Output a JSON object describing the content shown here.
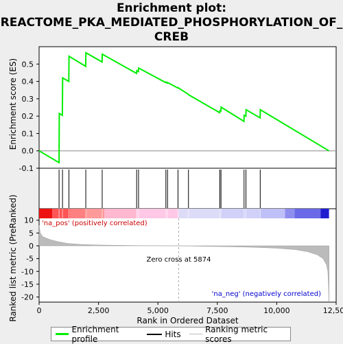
{
  "title_line1": "Enrichment plot:",
  "title_line2": "REACTOME_PKA_MEDIATED_PHOSPHORYLATION_OF_",
  "title_line3": "CREB",
  "colors": {
    "profile": "#00ee00",
    "hits": "#000000",
    "ranking_fill": "#bbbbbb",
    "zero_line": "#aaaaaa",
    "pos_label": "#cc0000",
    "neg_label": "#0000cc"
  },
  "legend": {
    "profile": "Enrichment profile",
    "hits": "Hits",
    "ranking": "Ranking metric scores"
  },
  "chart_data": [
    {
      "type": "line",
      "ylabel": "Enrichment score (ES)",
      "xlim": [
        0,
        12500
      ],
      "ylim": [
        -0.1,
        0.6
      ],
      "yticks": [
        -0.1,
        0.0,
        0.1,
        0.2,
        0.3,
        0.4,
        0.5
      ],
      "ytick_labels": [
        "-0.1",
        "0.0",
        "0.1",
        "0.2",
        "0.3",
        "0.4",
        "0.5"
      ],
      "series": [
        {
          "name": "Enrichment profile",
          "x": [
            0,
            840,
            850,
            980,
            990,
            1250,
            1260,
            1960,
            1970,
            2650,
            2660,
            4100,
            4110,
            4180,
            4190,
            5330,
            5340,
            5400,
            5410,
            5840,
            5850,
            6280,
            6290,
            7600,
            7610,
            7650,
            7660,
            8620,
            8630,
            8700,
            8710,
            9300,
            9310,
            12200
          ],
          "y": [
            0.0,
            -0.068,
            0.215,
            0.205,
            0.42,
            0.4,
            0.545,
            0.487,
            0.565,
            0.512,
            0.557,
            0.446,
            0.462,
            0.457,
            0.477,
            0.393,
            0.396,
            0.39,
            0.393,
            0.362,
            0.364,
            0.326,
            0.323,
            0.22,
            0.231,
            0.23,
            0.252,
            0.17,
            0.205,
            0.2,
            0.237,
            0.19,
            0.237,
            0.0
          ]
        }
      ]
    },
    {
      "type": "hits",
      "xlim": [
        0,
        12500
      ],
      "hit_positions": [
        840,
        985,
        1255,
        1965,
        2655,
        4105,
        4185,
        5335,
        5405,
        5845,
        6285,
        7605,
        7655,
        8625,
        8705,
        9305
      ]
    },
    {
      "type": "area",
      "xlabel": "Rank in Ordered Dataset",
      "ylabel": "Ranked list metric (PreRanked)",
      "xlim": [
        0,
        12500
      ],
      "ylim": [
        -22,
        11
      ],
      "xticks": [
        0,
        2500,
        5000,
        7500,
        10000,
        12500
      ],
      "xtick_labels": [
        "0",
        "2,500",
        "5,000",
        "7,500",
        "10,000",
        "12,500"
      ],
      "yticks": [
        10,
        5,
        0,
        -5,
        -10,
        -15,
        -20
      ],
      "ytick_labels": [
        "10",
        "5",
        "0",
        "-5",
        "-10",
        "-15",
        "-20"
      ],
      "x": [
        0,
        50,
        150,
        300,
        500,
        800,
        1200,
        1800,
        2500,
        3500,
        4500,
        5874,
        7000,
        8000,
        9000,
        10000,
        10800,
        11300,
        11700,
        11950,
        12100,
        12150,
        12180,
        12200
      ],
      "y": [
        8.0,
        5.0,
        3.6,
        3.0,
        2.3,
        1.6,
        0.9,
        0.5,
        0.3,
        0.15,
        0.05,
        0.0,
        -0.2,
        -0.35,
        -0.55,
        -0.9,
        -1.5,
        -2.3,
        -3.5,
        -5.0,
        -7.5,
        -10.0,
        -16.0,
        -22.0
      ],
      "zero_cross_label": "Zero cross at 5874",
      "zero_cross": 5874,
      "pos_label": "'na_pos' (positively correlated)",
      "neg_label": "'na_neg' (negatively correlated)"
    }
  ]
}
